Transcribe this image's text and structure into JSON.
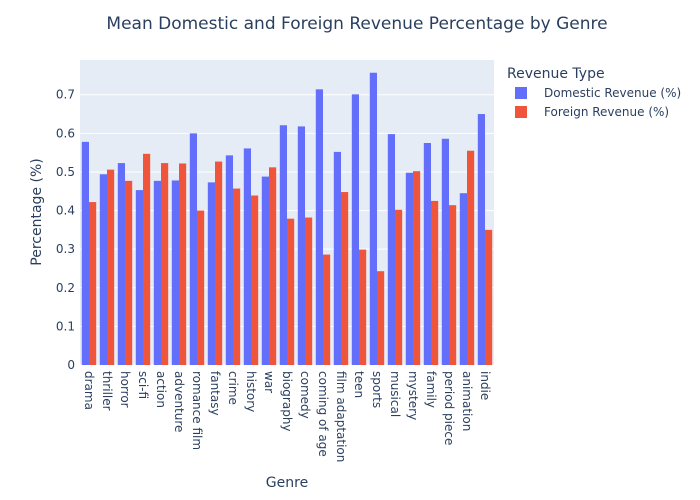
{
  "chart_data": {
    "type": "bar",
    "title": "Mean Domestic and Foreign Revenue Percentage by Genre",
    "xlabel": "Genre",
    "ylabel": "Percentage (%)",
    "ylim": [
      0,
      0.79
    ],
    "yticks": [
      0,
      0.1,
      0.2,
      0.3,
      0.4,
      0.5,
      0.6,
      0.7
    ],
    "ytick_labels": [
      "0",
      "0.1",
      "0.2",
      "0.3",
      "0.4",
      "0.5",
      "0.6",
      "0.7"
    ],
    "grid": true,
    "legend_title": "Revenue Type",
    "legend_position": "top-right",
    "categories": [
      "drama",
      "thriller",
      "horror",
      "sci-fi",
      "action",
      "adventure",
      "romance film",
      "fantasy",
      "crime",
      "history",
      "war",
      "biography",
      "comedy",
      "coming of age",
      "film adaptation",
      "teen",
      "sports",
      "musical",
      "mystery",
      "family",
      "period piece",
      "animation",
      "indie"
    ],
    "series": [
      {
        "name": "Domestic Revenue (%)",
        "color": "#636efa",
        "values": [
          0.578,
          0.494,
          0.523,
          0.453,
          0.477,
          0.478,
          0.6,
          0.473,
          0.543,
          0.561,
          0.488,
          0.621,
          0.618,
          0.714,
          0.552,
          0.701,
          0.757,
          0.598,
          0.498,
          0.575,
          0.586,
          0.445,
          0.65
        ]
      },
      {
        "name": "Foreign Revenue (%)",
        "color": "#ef553b",
        "values": [
          0.422,
          0.506,
          0.477,
          0.547,
          0.523,
          0.522,
          0.4,
          0.527,
          0.457,
          0.439,
          0.512,
          0.379,
          0.382,
          0.286,
          0.448,
          0.299,
          0.243,
          0.402,
          0.502,
          0.425,
          0.414,
          0.555,
          0.35
        ]
      }
    ]
  }
}
